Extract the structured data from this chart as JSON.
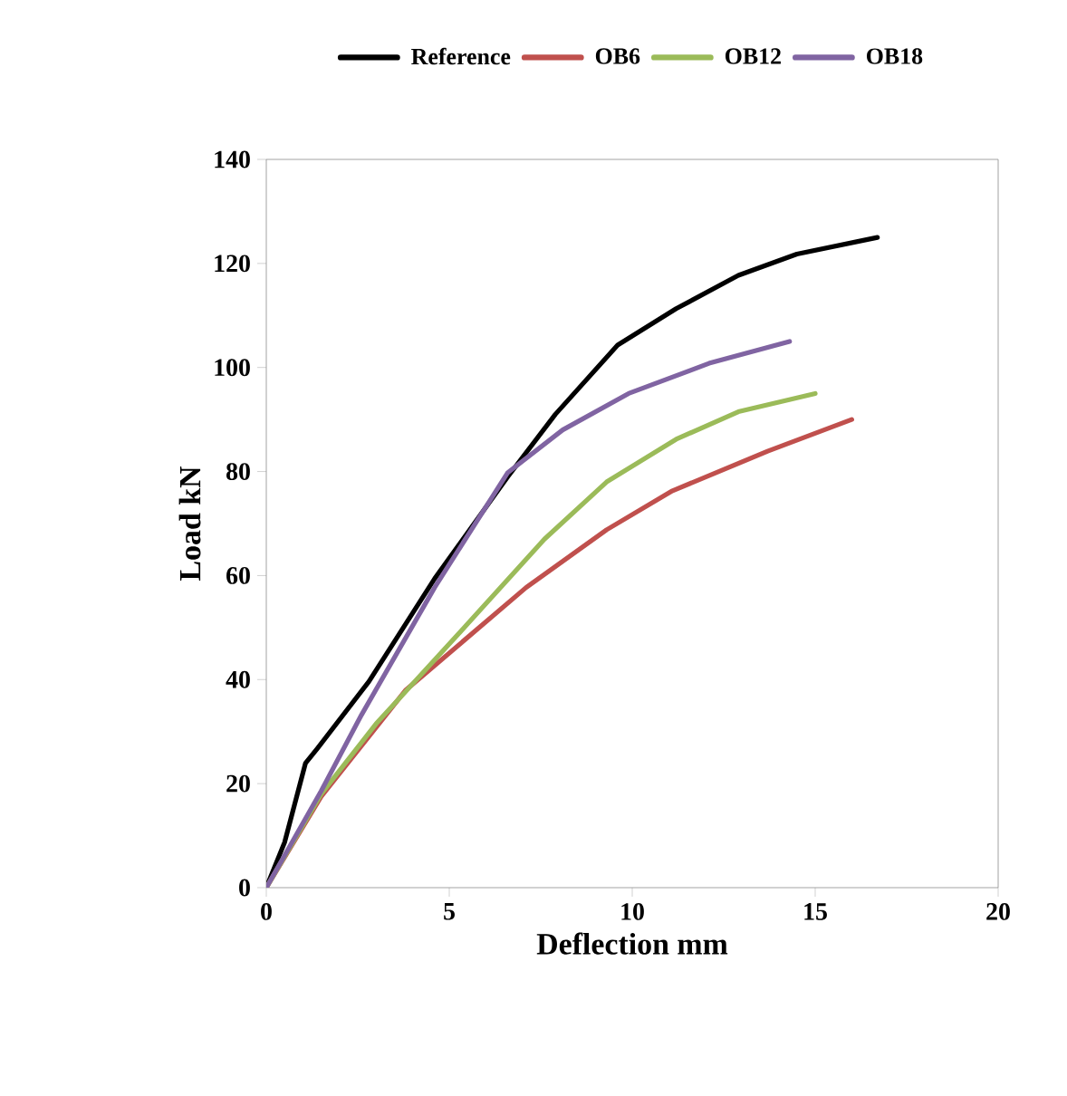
{
  "chart_data": {
    "type": "line",
    "xlabel": "Deflection mm",
    "ylabel": "Load kN",
    "xlim": [
      0,
      20
    ],
    "xticks": [
      0,
      5,
      10,
      15,
      20
    ],
    "ylim": [
      0,
      140
    ],
    "yticks": [
      0,
      20,
      40,
      60,
      80,
      100,
      120,
      140
    ],
    "grid": false,
    "legend": "top",
    "marker": "none",
    "line_style": "solid",
    "series": [
      {
        "name": "Reference",
        "color": "#000000",
        "x": [
          0,
          0.5,
          1.07,
          1.4,
          2.8,
          4.6,
          6.6,
          7.9,
          9.6,
          11.2,
          12.9,
          14.5,
          16.7
        ],
        "values": [
          0,
          8.7,
          23.9,
          26.8,
          39.6,
          59.4,
          79,
          91,
          104.3,
          111.3,
          117.7,
          121.8,
          125
        ]
      },
      {
        "name": "OB6",
        "color": "#c0504d",
        "x": [
          0,
          1.5,
          3.8,
          7.1,
          9.3,
          11.1,
          13.7,
          16
        ],
        "values": [
          0,
          17.5,
          37.9,
          57.7,
          68.8,
          76.3,
          83.9,
          90
        ]
      },
      {
        "name": "OB12",
        "color": "#9bbb59",
        "x": [
          0,
          1.5,
          3,
          5.5,
          7.6,
          9.3,
          11.2,
          12.9,
          15
        ],
        "values": [
          0,
          18,
          31.5,
          50.7,
          67,
          78,
          86.2,
          91.5,
          95
        ]
      },
      {
        "name": "OB18",
        "color": "#8064a2",
        "x": [
          0,
          1.5,
          2.6,
          4.6,
          6.6,
          8.1,
          9.9,
          12.1,
          14.3
        ],
        "values": [
          0,
          18.6,
          33.2,
          57.7,
          79.8,
          88,
          95,
          100.8,
          105
        ]
      }
    ]
  }
}
